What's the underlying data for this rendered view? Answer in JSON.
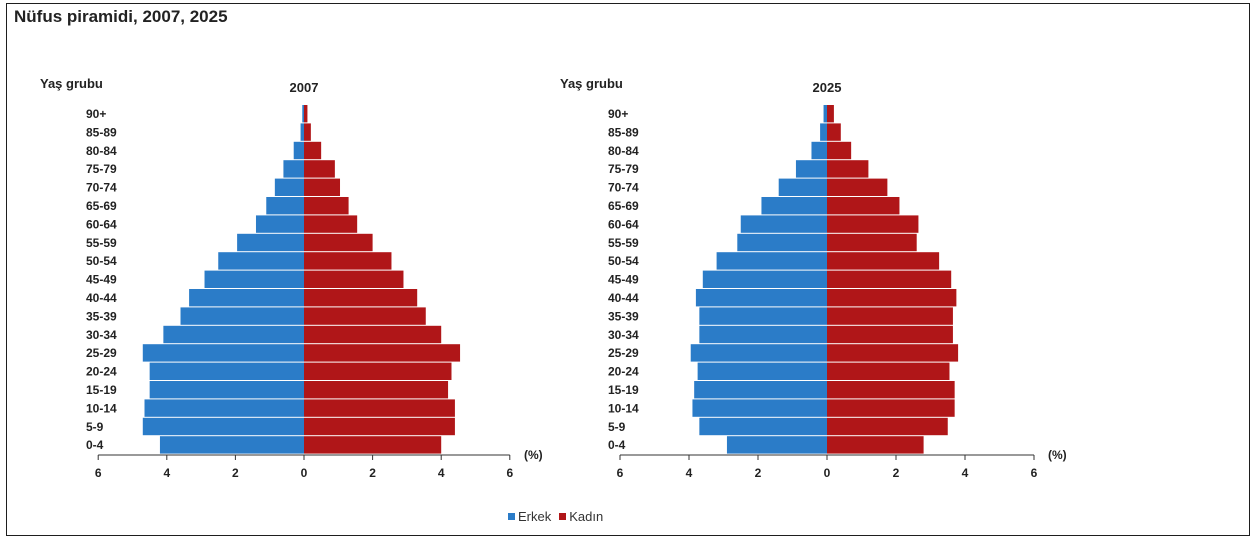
{
  "title": "Nüfus piramidi, 2007, 2025",
  "colors": {
    "male": "#2b7cc8",
    "female": "#b01618",
    "axis": "#333333",
    "text": "#222222"
  },
  "legend": {
    "male": "Erkek",
    "female": "Kadın"
  },
  "chart_data": [
    {
      "type": "bar",
      "title": "2007",
      "ylabel": "Yaş grubu",
      "xlabel": "(%)",
      "xlim": [
        -6,
        6
      ],
      "xticks": [
        6,
        4,
        2,
        0,
        2,
        4,
        6
      ],
      "categories": [
        "90+",
        "85-89",
        "80-84",
        "75-79",
        "70-74",
        "65-69",
        "60-64",
        "55-59",
        "50-54",
        "45-49",
        "40-44",
        "35-39",
        "30-34",
        "25-29",
        "20-24",
        "15-19",
        "10-14",
        "5-9",
        "0-4"
      ],
      "series": [
        {
          "name": "Erkek",
          "values": [
            0.05,
            0.1,
            0.3,
            0.6,
            0.85,
            1.1,
            1.4,
            1.95,
            2.5,
            2.9,
            3.35,
            3.6,
            4.1,
            4.7,
            4.5,
            4.5,
            4.65,
            4.7,
            4.2
          ]
        },
        {
          "name": "Kadın",
          "values": [
            0.1,
            0.2,
            0.5,
            0.9,
            1.05,
            1.3,
            1.55,
            2.0,
            2.55,
            2.9,
            3.3,
            3.55,
            4.0,
            4.55,
            4.3,
            4.2,
            4.4,
            4.4,
            4.0
          ]
        }
      ]
    },
    {
      "type": "bar",
      "title": "2025",
      "ylabel": "Yaş grubu",
      "xlabel": "(%)",
      "xlim": [
        -6,
        6
      ],
      "xticks": [
        6,
        4,
        2,
        0,
        2,
        4,
        6
      ],
      "categories": [
        "90+",
        "85-89",
        "80-84",
        "75-79",
        "70-74",
        "65-69",
        "60-64",
        "55-59",
        "50-54",
        "45-49",
        "40-44",
        "35-39",
        "30-34",
        "25-29",
        "20-24",
        "15-19",
        "10-14",
        "5-9",
        "0-4"
      ],
      "series": [
        {
          "name": "Erkek",
          "values": [
            0.1,
            0.2,
            0.45,
            0.9,
            1.4,
            1.9,
            2.5,
            2.6,
            3.2,
            3.6,
            3.8,
            3.7,
            3.7,
            3.95,
            3.75,
            3.85,
            3.9,
            3.7,
            2.9
          ]
        },
        {
          "name": "Kadın",
          "values": [
            0.2,
            0.4,
            0.7,
            1.2,
            1.75,
            2.1,
            2.65,
            2.6,
            3.25,
            3.6,
            3.75,
            3.65,
            3.65,
            3.8,
            3.55,
            3.7,
            3.7,
            3.5,
            2.8
          ]
        }
      ]
    }
  ]
}
